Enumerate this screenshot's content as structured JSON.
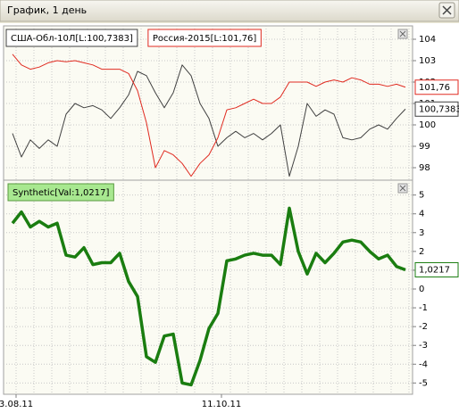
{
  "window": {
    "title": "График, 1 день"
  },
  "chart_data": [
    {
      "type": "line",
      "series": [
        {
          "name": "США-Обл-10Л[L:100,7383]",
          "color": "#404040",
          "values": [
            99.6,
            98.5,
            99.3,
            98.9,
            99.3,
            99.0,
            100.5,
            101.0,
            100.8,
            100.9,
            100.7,
            100.3,
            100.8,
            101.4,
            102.5,
            102.3,
            101.5,
            100.8,
            101.5,
            102.8,
            102.3,
            101.0,
            100.3,
            99.0,
            99.4,
            99.7,
            99.4,
            99.6,
            99.3,
            99.6,
            100.0,
            97.6,
            99.0,
            101.0,
            100.4,
            100.7,
            100.5,
            99.4,
            99.3,
            99.4,
            99.8,
            100.0,
            99.8,
            100.3,
            100.7383
          ],
          "value_labels": [
            null,
            null,
            null,
            null,
            null,
            null,
            null,
            null,
            null,
            null,
            null,
            null,
            null,
            null,
            null,
            null,
            null,
            null,
            null,
            null,
            null,
            null,
            null,
            null,
            null,
            null,
            null,
            null,
            null,
            null,
            null,
            null,
            null,
            null,
            null,
            null,
            null,
            null,
            null,
            null,
            null,
            null,
            null,
            null,
            "100,7383"
          ]
        },
        {
          "name": "Россия-2015[L:101,76]",
          "color": "#e02a20",
          "values": [
            103.3,
            102.8,
            102.6,
            102.7,
            102.9,
            103.0,
            102.95,
            103.0,
            102.9,
            102.8,
            102.6,
            102.6,
            102.6,
            102.4,
            101.6,
            100.1,
            98.0,
            98.8,
            98.6,
            98.2,
            97.6,
            98.2,
            98.6,
            99.4,
            100.7,
            100.8,
            101.0,
            101.2,
            101.0,
            101.0,
            101.3,
            102.0,
            102.0,
            102.0,
            101.8,
            102.0,
            102.1,
            102.0,
            102.2,
            102.1,
            101.9,
            101.9,
            101.8,
            101.9,
            101.76
          ],
          "value_labels": [
            null,
            null,
            null,
            null,
            null,
            null,
            null,
            null,
            null,
            null,
            null,
            null,
            null,
            null,
            null,
            null,
            null,
            null,
            null,
            null,
            null,
            null,
            null,
            null,
            null,
            null,
            null,
            null,
            null,
            null,
            null,
            null,
            null,
            null,
            null,
            null,
            null,
            null,
            null,
            null,
            null,
            null,
            null,
            null,
            "101,76"
          ]
        }
      ],
      "ylim": [
        97.5,
        104.5
      ],
      "yticks": [
        98,
        99,
        100,
        101,
        102,
        103,
        104
      ],
      "grid": true
    },
    {
      "type": "line",
      "categories": [
        "3.08.11",
        null,
        null,
        null,
        null,
        null,
        null,
        null,
        null,
        null,
        null,
        null,
        null,
        null,
        null,
        null,
        null,
        null,
        null,
        null,
        null,
        null,
        null,
        "11.10.11",
        null,
        null,
        null,
        null,
        null,
        null,
        null,
        null,
        null,
        null,
        null,
        null,
        null,
        null,
        null,
        null,
        null,
        null,
        null,
        null,
        null
      ],
      "series": [
        {
          "name": "Synthetic[Val:1,0217]",
          "color": "#1a7d10",
          "values": [
            3.5,
            4.1,
            3.3,
            3.6,
            3.3,
            3.5,
            1.8,
            1.7,
            2.2,
            1.3,
            1.4,
            1.4,
            1.9,
            0.4,
            -0.4,
            -3.6,
            -3.9,
            -2.5,
            -2.4,
            -5.0,
            -5.1,
            -3.8,
            -2.1,
            -1.3,
            1.5,
            1.6,
            1.8,
            1.9,
            1.8,
            1.8,
            1.3,
            4.3,
            2.0,
            0.8,
            1.9,
            1.4,
            1.9,
            2.5,
            2.6,
            2.5,
            2.0,
            1.6,
            1.8,
            1.2,
            1.0217
          ],
          "value_labels": [
            null,
            null,
            null,
            null,
            null,
            null,
            null,
            null,
            null,
            null,
            null,
            null,
            null,
            null,
            null,
            null,
            null,
            null,
            null,
            null,
            null,
            null,
            null,
            null,
            null,
            null,
            null,
            null,
            null,
            null,
            null,
            null,
            null,
            null,
            null,
            null,
            null,
            null,
            null,
            null,
            null,
            null,
            null,
            null,
            "1,0217"
          ]
        }
      ],
      "ylim": [
        -5.6,
        5.6
      ],
      "yticks": [
        -5,
        -4,
        -3,
        -2,
        -1,
        0,
        1,
        2,
        3,
        4,
        5
      ],
      "grid": true
    }
  ]
}
